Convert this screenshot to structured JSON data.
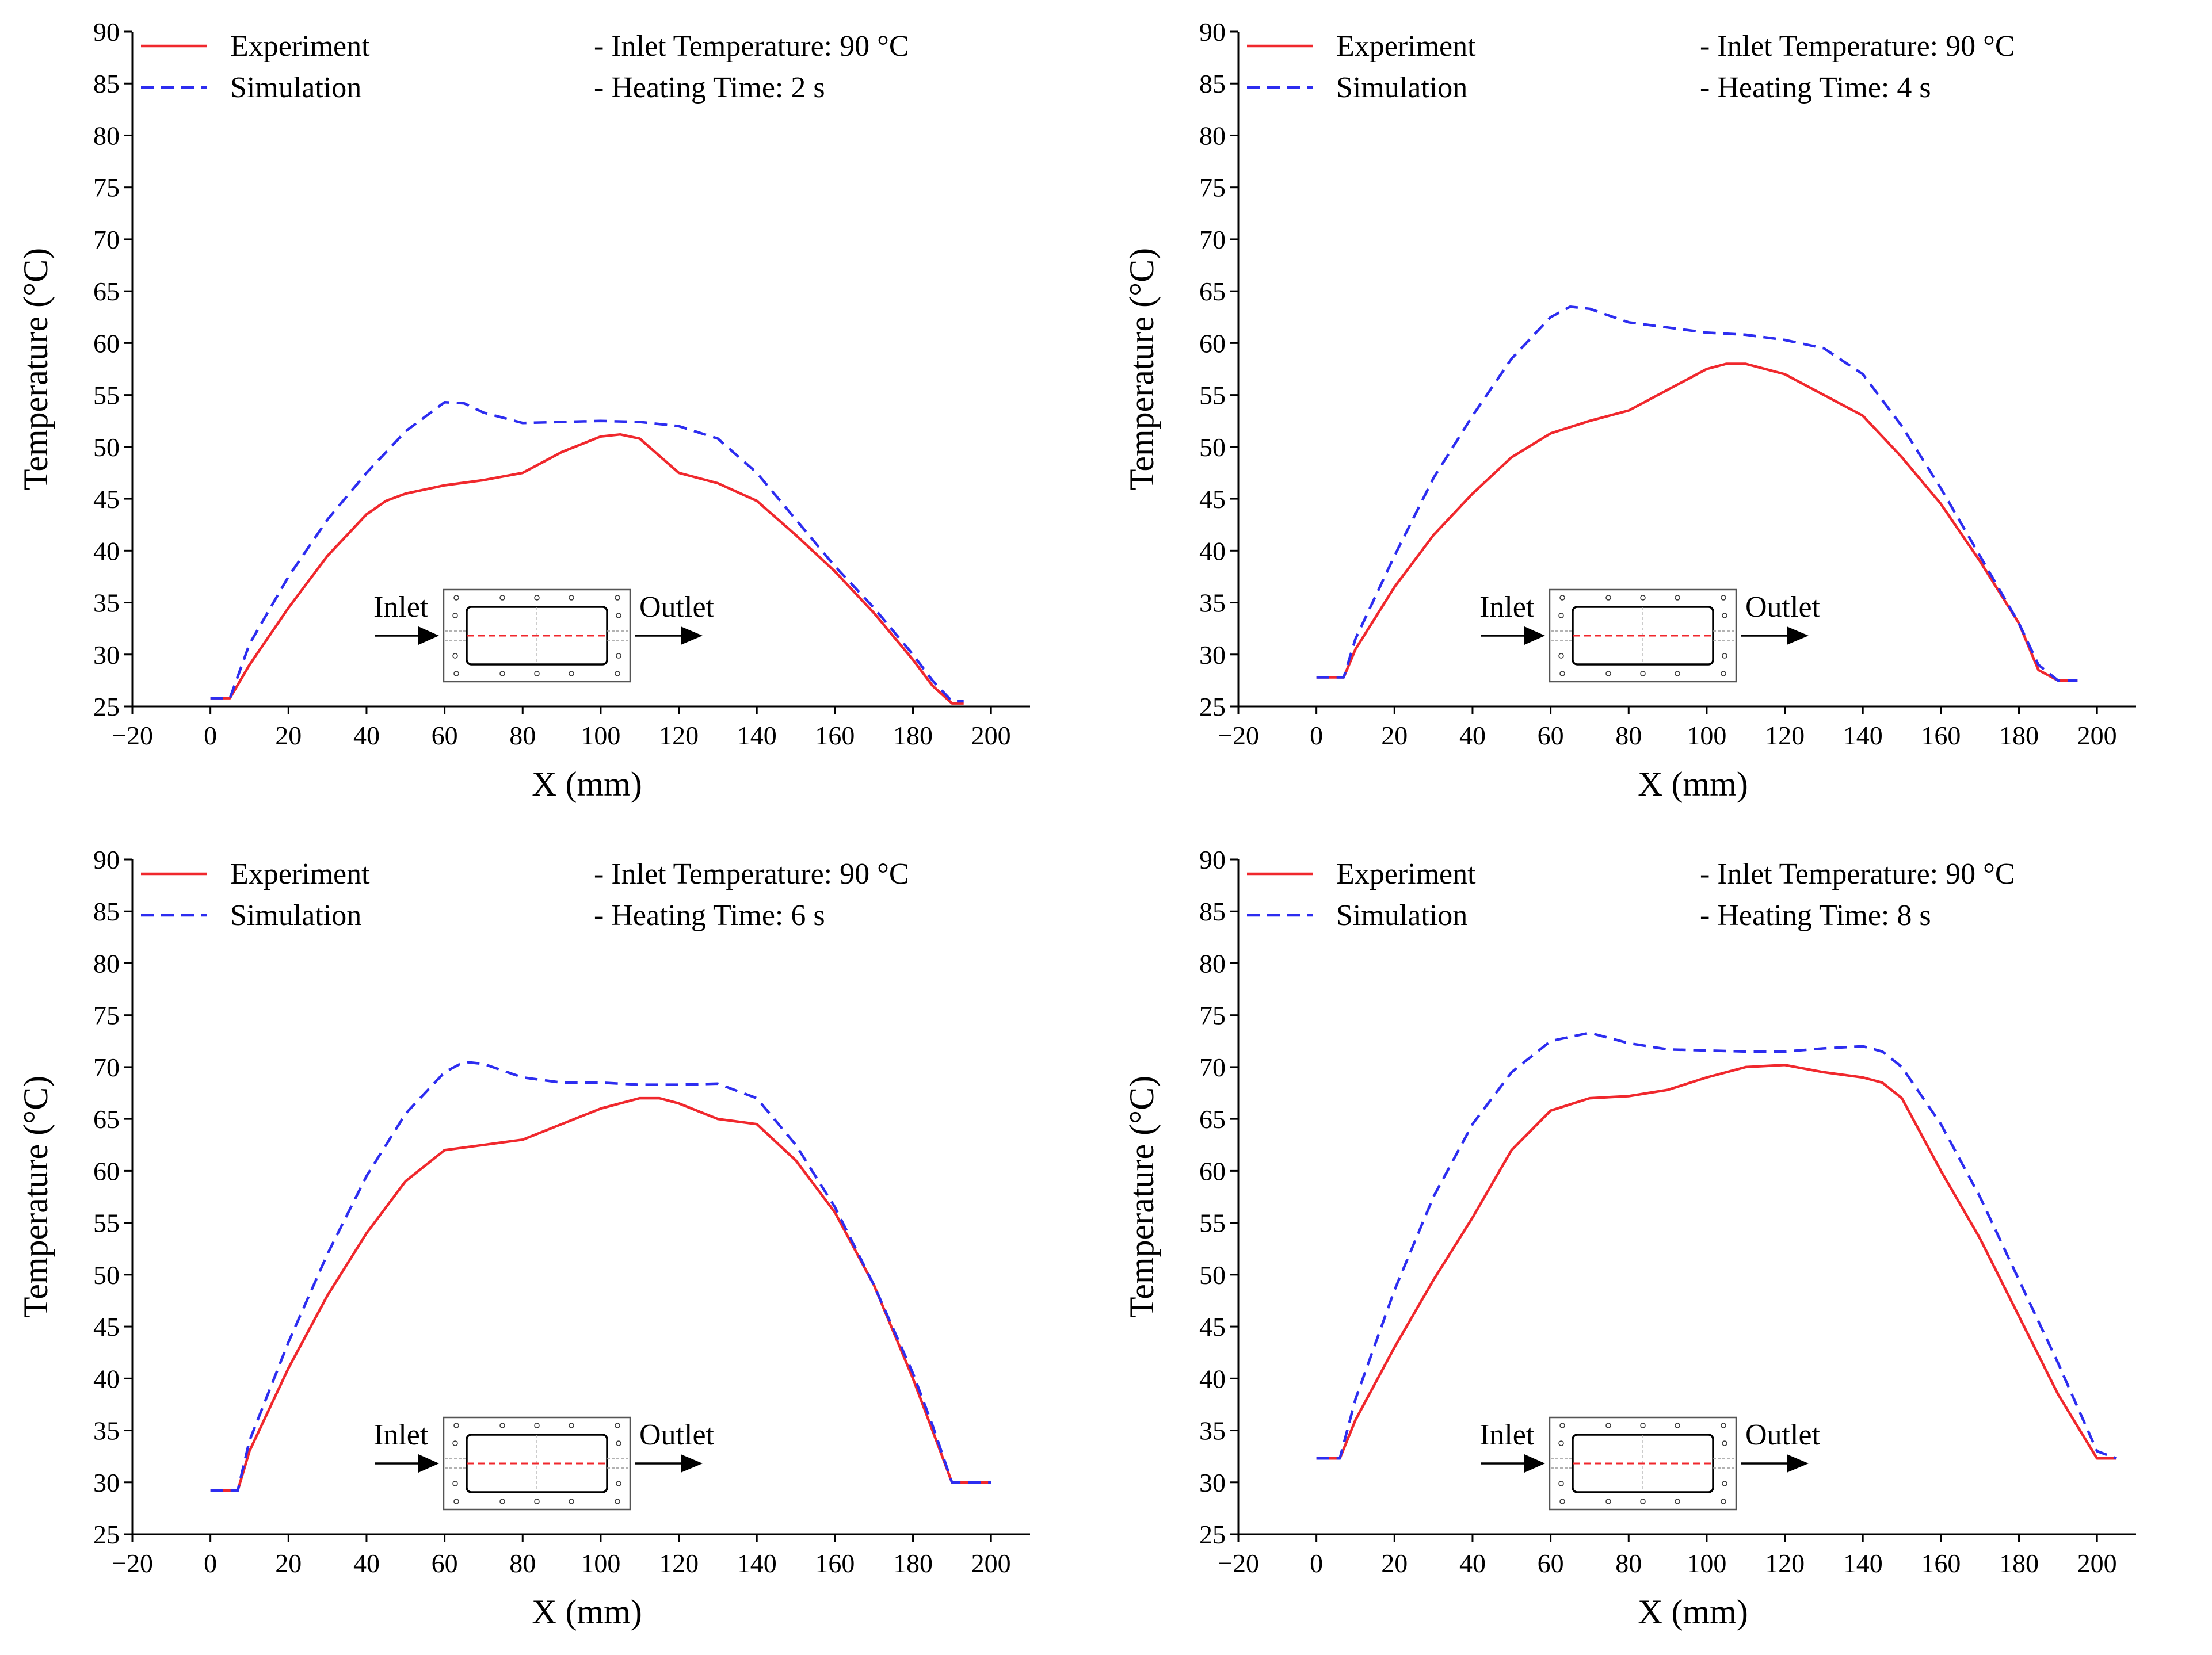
{
  "charts": [
    {
      "type": "line",
      "xlabel": "X (mm)",
      "ylabel": "Temperature (°C)",
      "xlim": [
        -20,
        210
      ],
      "ylim": [
        25,
        90
      ],
      "xticks": [
        -20,
        0,
        20,
        40,
        60,
        80,
        100,
        120,
        140,
        160,
        180,
        200
      ],
      "yticks": [
        25,
        30,
        35,
        40,
        45,
        50,
        55,
        60,
        65,
        70,
        75,
        80,
        85,
        90
      ],
      "legend": [
        "Experiment",
        "Simulation"
      ],
      "notes": [
        "- Inlet Temperature: 90 °C",
        "- Heating Time: 2 s"
      ],
      "inset": {
        "inlet": "Inlet",
        "outlet": "Outlet"
      },
      "colors": {
        "experiment": "#f0282d",
        "simulation": "#2d2df0"
      },
      "series": [
        {
          "name": "Experiment",
          "x": [
            0,
            5,
            10,
            20,
            30,
            40,
            45,
            50,
            60,
            70,
            80,
            90,
            100,
            105,
            110,
            120,
            130,
            140,
            150,
            160,
            170,
            180,
            185,
            190,
            193
          ],
          "y": [
            25.8,
            25.8,
            29.0,
            34.5,
            39.5,
            43.5,
            44.8,
            45.5,
            46.3,
            46.8,
            47.5,
            49.5,
            51.0,
            51.2,
            50.8,
            47.5,
            46.5,
            44.8,
            41.5,
            38.0,
            34.0,
            29.5,
            27.0,
            25.3,
            25.3
          ]
        },
        {
          "name": "Simulation",
          "x": [
            0,
            5,
            10,
            20,
            30,
            40,
            50,
            60,
            65,
            70,
            80,
            90,
            100,
            110,
            120,
            130,
            140,
            150,
            160,
            170,
            180,
            185,
            190,
            193
          ],
          "y": [
            25.8,
            25.8,
            31.0,
            37.5,
            43.0,
            47.5,
            51.5,
            54.3,
            54.2,
            53.3,
            52.3,
            52.4,
            52.5,
            52.4,
            52.0,
            50.8,
            47.5,
            43.0,
            38.5,
            34.5,
            30.0,
            27.5,
            25.5,
            25.5
          ]
        }
      ]
    },
    {
      "type": "line",
      "xlabel": "X (mm)",
      "ylabel": "Temperature (°C)",
      "xlim": [
        -20,
        210
      ],
      "ylim": [
        25,
        90
      ],
      "xticks": [
        -20,
        0,
        20,
        40,
        60,
        80,
        100,
        120,
        140,
        160,
        180,
        200
      ],
      "yticks": [
        25,
        30,
        35,
        40,
        45,
        50,
        55,
        60,
        65,
        70,
        75,
        80,
        85,
        90
      ],
      "legend": [
        "Experiment",
        "Simulation"
      ],
      "notes": [
        "- Inlet Temperature: 90 °C",
        "- Heating Time: 4 s"
      ],
      "inset": {
        "inlet": "Inlet",
        "outlet": "Outlet"
      },
      "colors": {
        "experiment": "#f0282d",
        "simulation": "#2d2df0"
      },
      "series": [
        {
          "name": "Experiment",
          "x": [
            0,
            7,
            10,
            20,
            30,
            40,
            50,
            60,
            70,
            80,
            90,
            100,
            105,
            110,
            120,
            130,
            140,
            150,
            160,
            170,
            180,
            185,
            190,
            195
          ],
          "y": [
            27.8,
            27.8,
            30.5,
            36.5,
            41.5,
            45.5,
            49.0,
            51.3,
            52.5,
            53.5,
            55.5,
            57.5,
            58.0,
            58.0,
            57.0,
            55.0,
            53.0,
            49.0,
            44.5,
            39.0,
            33.0,
            28.5,
            27.5,
            27.5
          ]
        },
        {
          "name": "Simulation",
          "x": [
            0,
            7,
            10,
            20,
            30,
            40,
            50,
            60,
            65,
            70,
            80,
            90,
            100,
            110,
            120,
            130,
            140,
            150,
            160,
            170,
            180,
            185,
            190,
            195
          ],
          "y": [
            27.8,
            27.8,
            31.5,
            39.5,
            47.0,
            53.0,
            58.5,
            62.5,
            63.5,
            63.3,
            62.0,
            61.5,
            61.0,
            60.8,
            60.3,
            59.5,
            57.0,
            52.0,
            46.0,
            39.5,
            33.0,
            29.0,
            27.5,
            27.5
          ]
        }
      ]
    },
    {
      "type": "line",
      "xlabel": "X (mm)",
      "ylabel": "Temperature (°C)",
      "xlim": [
        -20,
        210
      ],
      "ylim": [
        25,
        90
      ],
      "xticks": [
        -20,
        0,
        20,
        40,
        60,
        80,
        100,
        120,
        140,
        160,
        180,
        200
      ],
      "yticks": [
        25,
        30,
        35,
        40,
        45,
        50,
        55,
        60,
        65,
        70,
        75,
        80,
        85,
        90
      ],
      "legend": [
        "Experiment",
        "Simulation"
      ],
      "notes": [
        "- Inlet Temperature: 90 °C",
        "- Heating Time: 6 s"
      ],
      "inset": {
        "inlet": "Inlet",
        "outlet": "Outlet"
      },
      "colors": {
        "experiment": "#f0282d",
        "simulation": "#2d2df0"
      },
      "series": [
        {
          "name": "Experiment",
          "x": [
            0,
            7,
            10,
            20,
            30,
            40,
            50,
            60,
            70,
            80,
            90,
            100,
            110,
            115,
            120,
            130,
            140,
            150,
            160,
            170,
            180,
            185,
            190,
            200
          ],
          "y": [
            29.2,
            29.2,
            33.0,
            41.0,
            48.0,
            54.0,
            59.0,
            62.0,
            62.5,
            63.0,
            64.5,
            66.0,
            67.0,
            67.0,
            66.5,
            65.0,
            64.5,
            61.0,
            56.0,
            49.0,
            40.0,
            35.0,
            30.0,
            30.0
          ]
        },
        {
          "name": "Simulation",
          "x": [
            0,
            7,
            10,
            20,
            30,
            40,
            50,
            60,
            65,
            70,
            80,
            90,
            100,
            110,
            120,
            130,
            140,
            150,
            160,
            170,
            180,
            185,
            190,
            200
          ],
          "y": [
            29.2,
            29.2,
            34.0,
            43.5,
            52.0,
            59.5,
            65.5,
            69.5,
            70.5,
            70.3,
            69.0,
            68.5,
            68.5,
            68.3,
            68.3,
            68.4,
            67.0,
            62.5,
            56.5,
            49.0,
            40.5,
            35.5,
            30.0,
            30.0
          ]
        }
      ]
    },
    {
      "type": "line",
      "xlabel": "X (mm)",
      "ylabel": "Temperature (°C)",
      "xlim": [
        -20,
        210
      ],
      "ylim": [
        25,
        90
      ],
      "xticks": [
        -20,
        0,
        20,
        40,
        60,
        80,
        100,
        120,
        140,
        160,
        180,
        200
      ],
      "yticks": [
        25,
        30,
        35,
        40,
        45,
        50,
        55,
        60,
        65,
        70,
        75,
        80,
        85,
        90
      ],
      "legend": [
        "Experiment",
        "Simulation"
      ],
      "notes": [
        "- Inlet Temperature: 90 °C",
        "- Heating Time: 8 s"
      ],
      "inset": {
        "inlet": "Inlet",
        "outlet": "Outlet"
      },
      "colors": {
        "experiment": "#f0282d",
        "simulation": "#2d2df0"
      },
      "series": [
        {
          "name": "Experiment",
          "x": [
            0,
            6,
            10,
            20,
            30,
            40,
            50,
            60,
            70,
            80,
            90,
            100,
            110,
            120,
            130,
            140,
            145,
            150,
            160,
            170,
            180,
            190,
            200,
            205
          ],
          "y": [
            32.3,
            32.3,
            36.0,
            43.0,
            49.5,
            55.5,
            62.0,
            65.8,
            67.0,
            67.2,
            67.8,
            69.0,
            70.0,
            70.2,
            69.5,
            69.0,
            68.5,
            67.0,
            60.0,
            53.5,
            46.0,
            38.5,
            32.3,
            32.3
          ]
        },
        {
          "name": "Simulation",
          "x": [
            0,
            6,
            10,
            20,
            30,
            40,
            50,
            60,
            70,
            80,
            90,
            100,
            110,
            120,
            130,
            140,
            145,
            150,
            160,
            170,
            180,
            190,
            200,
            205
          ],
          "y": [
            32.3,
            32.3,
            38.0,
            48.5,
            57.5,
            64.5,
            69.5,
            72.5,
            73.3,
            72.3,
            71.7,
            71.6,
            71.5,
            71.5,
            71.8,
            72.0,
            71.5,
            70.0,
            64.5,
            57.5,
            49.5,
            41.5,
            33.0,
            32.3
          ]
        }
      ]
    }
  ]
}
